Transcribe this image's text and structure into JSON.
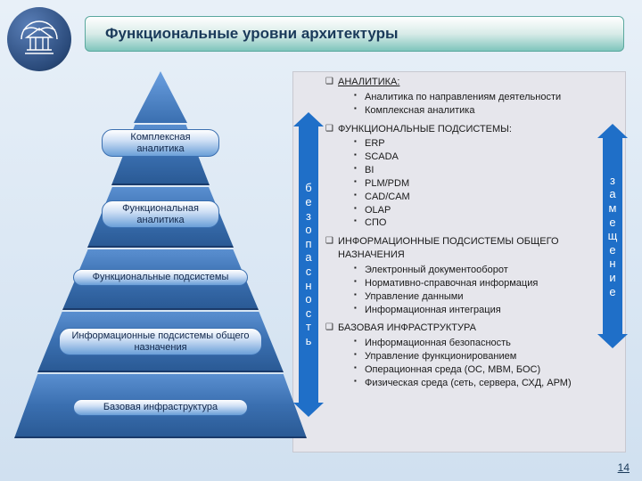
{
  "title": "Функциональные уровни архитектуры",
  "page_number": "14",
  "colors": {
    "accent": "#1f6fc8",
    "panel_bg": "#e6e6ec",
    "pyramid_gradient_top": "#5a8fd0",
    "pyramid_gradient_bottom": "#2a5a95",
    "header_teal": "#7fc5bc",
    "body_bg_top": "#e8f0f8"
  },
  "pyramid": {
    "layers": [
      {
        "label": "Комплексная аналитика"
      },
      {
        "label": "Функциональная аналитика"
      },
      {
        "label": "Функциональные подсистемы"
      },
      {
        "label": "Информационные подсистемы общего назначения"
      },
      {
        "label": "Базовая инфраструктура"
      }
    ]
  },
  "side_arrows": {
    "left": "безопасность",
    "right": "замещение"
  },
  "sections": [
    {
      "title": "АНАЛИТИКА:",
      "underline": true,
      "items": [
        "Аналитика по направлениям деятельности",
        "Комплексная аналитика"
      ]
    },
    {
      "title": "ФУНКЦИОНАЛЬНЫЕ ПОДСИСТЕМЫ:",
      "items": [
        "ERP",
        "SCADA",
        "BI",
        "PLM/PDM",
        "CAD/CAM",
        "OLAP",
        "СПО"
      ]
    },
    {
      "title": "ИНФОРМАЦИОННЫЕ ПОДСИСТЕМЫ ОБЩЕГО НАЗНАЧЕНИЯ",
      "items": [
        "Электронный документооборот",
        "Нормативно-справочная информация",
        "Управление данными",
        "Информационная интеграция"
      ]
    },
    {
      "title": "БАЗОВАЯ ИНФРАСТРУКТУРА",
      "items": [
        "Информационная безопасность",
        "Управление функционированием",
        "Операционная среда (ОС, МВМ, БОС)",
        "Физическая среда (сеть, сервера, СХД, АРМ)"
      ]
    }
  ]
}
